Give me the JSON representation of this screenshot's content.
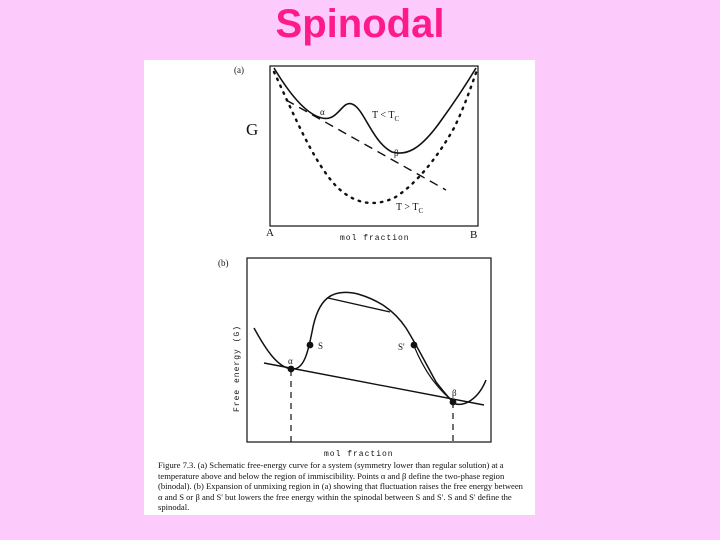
{
  "slide": {
    "title": "Spinodal"
  },
  "panel_a": {
    "tag": "(a)",
    "g_label": "G",
    "alpha": "α",
    "beta": "β",
    "t_low": "T < T",
    "t_high": "T > T",
    "t_sub": "C",
    "left_end": "A",
    "right_end": "B",
    "xlabel": "mol fraction"
  },
  "panel_b": {
    "tag": "(b)",
    "ylabel": "Free energy (G)",
    "alpha": "α",
    "beta": "β",
    "s_label": "S",
    "s_prime_label": "S'",
    "xlabel": "mol fraction"
  },
  "caption": {
    "text": "Figure 7.3. (a) Schematic free-energy curve for a system (symmetry lower than regular solution) at a temperature above and below the region of immiscibility. Points α and β define the two-phase region (binodal). (b) Expansion of unmixing region in (a) showing that fluctuation raises the free energy between α and S or β and S' but lowers the free energy within the spinodal between S and S'. S and S' define the spinodal."
  }
}
